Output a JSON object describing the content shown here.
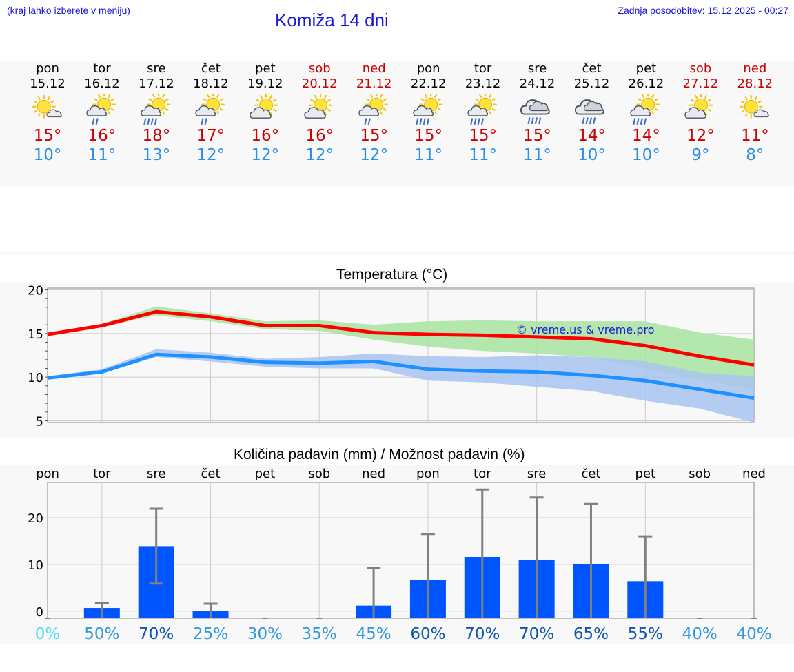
{
  "header": {
    "hint": "(kraj lahko izberete v meniju)",
    "title": "Komiža 14 dni",
    "updated": "Zadnja posodobitev: 15.12.2025 - 00:27"
  },
  "days": [
    {
      "name": "pon",
      "date": "15.12",
      "weekend": false,
      "icon": "partly-sunny-icon",
      "max": "15°",
      "min": "10°"
    },
    {
      "name": "tor",
      "date": "16.12",
      "weekend": false,
      "icon": "sun-cloud-rain-icon",
      "max": "16°",
      "min": "11°"
    },
    {
      "name": "sre",
      "date": "17.12",
      "weekend": false,
      "icon": "sun-cloud-heavy-rain-icon",
      "max": "18°",
      "min": "13°"
    },
    {
      "name": "čet",
      "date": "18.12",
      "weekend": false,
      "icon": "sun-cloud-rain-icon",
      "max": "17°",
      "min": "12°"
    },
    {
      "name": "pet",
      "date": "19.12",
      "weekend": false,
      "icon": "partly-cloudy-icon",
      "max": "16°",
      "min": "12°"
    },
    {
      "name": "sob",
      "date": "20.12",
      "weekend": true,
      "icon": "partly-cloudy-icon",
      "max": "16°",
      "min": "12°"
    },
    {
      "name": "ned",
      "date": "21.12",
      "weekend": true,
      "icon": "sun-cloud-rain-icon",
      "max": "15°",
      "min": "12°"
    },
    {
      "name": "pon",
      "date": "22.12",
      "weekend": false,
      "icon": "sun-cloud-heavy-rain-icon",
      "max": "15°",
      "min": "11°"
    },
    {
      "name": "tor",
      "date": "23.12",
      "weekend": false,
      "icon": "sun-cloud-heavy-rain-icon",
      "max": "15°",
      "min": "11°"
    },
    {
      "name": "sre",
      "date": "24.12",
      "weekend": false,
      "icon": "cloud-rain-icon",
      "max": "15°",
      "min": "11°"
    },
    {
      "name": "čet",
      "date": "25.12",
      "weekend": false,
      "icon": "cloud-rain-icon",
      "max": "14°",
      "min": "10°"
    },
    {
      "name": "pet",
      "date": "26.12",
      "weekend": false,
      "icon": "sun-cloud-heavy-rain-icon",
      "max": "14°",
      "min": "10°"
    },
    {
      "name": "sob",
      "date": "27.12",
      "weekend": true,
      "icon": "partly-cloudy-icon",
      "max": "12°",
      "min": "9°"
    },
    {
      "name": "ned",
      "date": "28.12",
      "weekend": true,
      "icon": "partly-sunny-icon",
      "max": "11°",
      "min": "8°"
    }
  ],
  "colors": {
    "max_line": "#ff0000",
    "min_line": "#1e90ff",
    "max_band": "#a8e4a0",
    "min_band": "#a8c4f0",
    "bar": "#0055ff",
    "error": "#808080",
    "watermark": "#1a1ad9"
  },
  "chart_data": [
    {
      "type": "line",
      "title": "Temperatura (°C)",
      "ylim": [
        4.8,
        20.2
      ],
      "yticks": [
        5,
        10,
        15,
        20
      ],
      "watermark": "© vreme.us & vreme.pro",
      "x": [
        0,
        1,
        2,
        3,
        4,
        5,
        6,
        7,
        8,
        9,
        10,
        11,
        12,
        13
      ],
      "series": [
        {
          "name": "max",
          "values": [
            14.9,
            15.9,
            17.5,
            16.9,
            15.9,
            15.9,
            15.1,
            14.9,
            14.8,
            14.6,
            14.4,
            13.6,
            12.4,
            11.4
          ],
          "band_low": [
            14.8,
            15.7,
            17.1,
            16.4,
            15.5,
            15.3,
            14.3,
            13.5,
            13.0,
            12.7,
            12.3,
            11.0,
            9.7,
            8.6
          ],
          "band_high": [
            15.0,
            16.1,
            18.1,
            17.3,
            16.4,
            16.5,
            16.0,
            16.4,
            16.5,
            16.4,
            16.4,
            16.4,
            15.1,
            14.3
          ]
        },
        {
          "name": "min",
          "values": [
            9.9,
            10.6,
            12.6,
            12.3,
            11.7,
            11.6,
            11.8,
            10.9,
            10.7,
            10.6,
            10.2,
            9.6,
            8.6,
            7.6
          ],
          "band_low": [
            9.8,
            10.5,
            12.3,
            11.8,
            11.2,
            11.0,
            11.0,
            9.6,
            9.4,
            8.9,
            8.4,
            7.3,
            6.4,
            4.8
          ],
          "band_high": [
            10.1,
            10.9,
            13.2,
            12.8,
            12.1,
            12.3,
            12.7,
            12.4,
            12.3,
            12.5,
            12.3,
            11.8,
            10.5,
            10.1
          ]
        }
      ]
    },
    {
      "type": "bar",
      "title": "Količina padavin (mm) / Možnost padavin (%)",
      "categories": [
        "pon",
        "tor",
        "sre",
        "čet",
        "pet",
        "sob",
        "ned",
        "pon",
        "tor",
        "sre",
        "čet",
        "pet",
        "sob",
        "ned"
      ],
      "ylim": [
        -1.5,
        27.5
      ],
      "yticks": [
        0,
        10,
        20
      ],
      "values": [
        0,
        0.7,
        13.9,
        0.1,
        0,
        0,
        1.2,
        6.7,
        11.6,
        10.9,
        10.0,
        6.4,
        0,
        0
      ],
      "err_low": [
        0,
        0,
        5.9,
        0,
        0,
        0,
        0,
        0,
        0,
        0,
        0,
        0,
        0,
        0
      ],
      "err_high": [
        0,
        1.8,
        21.9,
        1.6,
        0,
        0,
        9.3,
        16.5,
        26.0,
        24.3,
        22.9,
        16.0,
        0,
        0
      ],
      "probability": [
        "0%",
        "50%",
        "70%",
        "25%",
        "30%",
        "35%",
        "45%",
        "60%",
        "70%",
        "70%",
        "65%",
        "55%",
        "40%",
        "40%"
      ],
      "probability_colors": [
        "#55ddee",
        "#3399dd",
        "#1155aa",
        "#3399dd",
        "#3399dd",
        "#3399dd",
        "#3399dd",
        "#1155aa",
        "#1155aa",
        "#1155aa",
        "#1155aa",
        "#1155aa",
        "#3399dd",
        "#3399dd"
      ]
    }
  ]
}
